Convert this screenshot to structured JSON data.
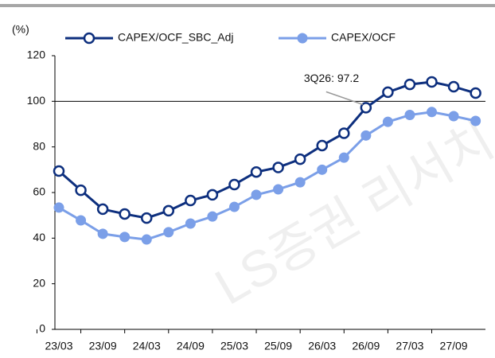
{
  "chart_data": {
    "type": "line",
    "y_unit_label": "(%)",
    "categories": [
      "23/03",
      null,
      "23/09",
      null,
      "24/03",
      null,
      "24/09",
      null,
      "25/03",
      null,
      "25/09",
      null,
      "26/03",
      null,
      "26/09",
      null,
      "27/03",
      null,
      "27/09",
      null
    ],
    "series": [
      {
        "name": "CAPEX/OCF_SBC_Adj",
        "color": "#0d2f7e",
        "values": [
          69.4,
          61,
          52.7,
          50.6,
          48.8,
          52,
          56.5,
          59,
          63.5,
          69,
          71,
          74.6,
          80.6,
          86,
          97.2,
          104,
          107.4,
          108.5,
          106.4,
          103.6
        ]
      },
      {
        "name": "CAPEX/OCF",
        "color": "#7b9fe8",
        "values": [
          53.4,
          47.8,
          41.9,
          40.5,
          39.4,
          42.6,
          46.4,
          49.5,
          53.7,
          59,
          61.4,
          64.5,
          70,
          75.3,
          85,
          91,
          94,
          95.3,
          93.5,
          91.4
        ]
      }
    ],
    "ylim": [
      0,
      120
    ],
    "yticks": [
      0,
      20,
      40,
      60,
      80,
      100,
      120
    ],
    "reference_line": 100,
    "annotation": {
      "text": "3Q26: 97.2",
      "series": 0,
      "index": 14
    },
    "watermark": "LS증권 리서치"
  }
}
